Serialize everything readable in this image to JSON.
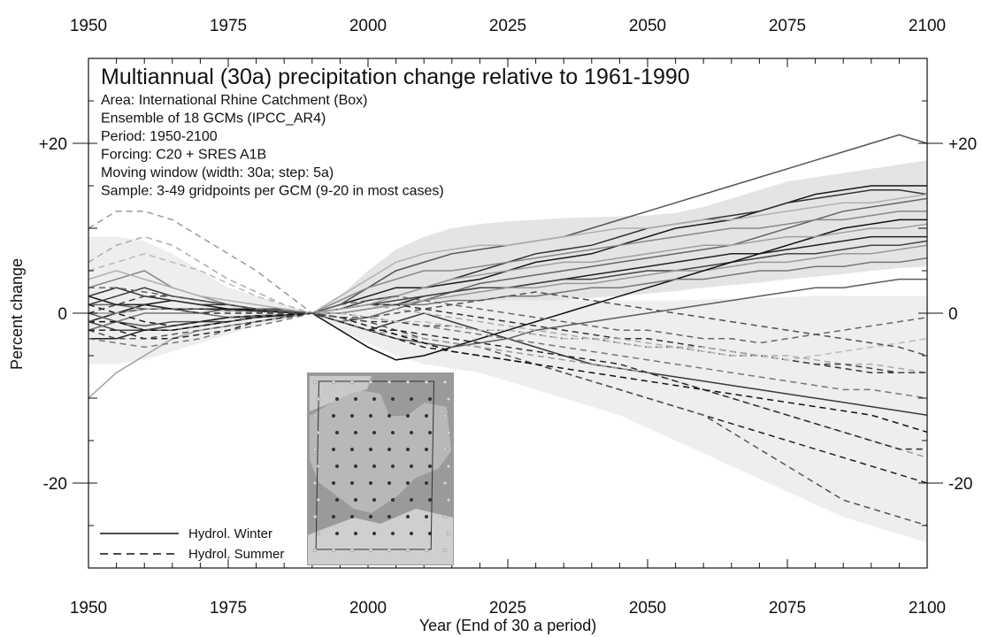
{
  "chart_data": {
    "type": "line",
    "title": "Multiannual (30a) precipitation change relative to 1961-1990",
    "info_lines": [
      "Area: International Rhine Catchment (Box)",
      "Ensemble of 18 GCMs (IPCC_AR4)",
      "Period: 1950-2100",
      "Forcing: C20 + SRES A1B",
      "Moving window (width: 30a; step: 5a)",
      "Sample: 3-49 gridpoints per GCM (9-20 in most cases)"
    ],
    "xlabel": "Year (End of 30 a period)",
    "ylabel": "Percent change",
    "xlim": [
      1950,
      2100
    ],
    "ylim": [
      -30,
      30
    ],
    "x_ticks": [
      "1950",
      "1975",
      "2000",
      "2025",
      "2050",
      "2075",
      "2100"
    ],
    "y_ticks": [
      "+20",
      "0",
      "-20"
    ],
    "y_tick_values": [
      20,
      0,
      -20
    ],
    "legend_position": "bottom-left",
    "legend": [
      {
        "label": "Hydrol. Winter",
        "style": "solid"
      },
      {
        "label": "Hydrol. Summer",
        "style": "dashed"
      }
    ],
    "x": [
      1950,
      1955,
      1960,
      1965,
      1970,
      1975,
      1980,
      1985,
      1990,
      1995,
      2000,
      2005,
      2010,
      2015,
      2020,
      2025,
      2030,
      2035,
      2040,
      2045,
      2050,
      2055,
      2060,
      2065,
      2070,
      2075,
      2080,
      2085,
      2090,
      2095,
      2100
    ],
    "bands": [
      {
        "name": "winter_range",
        "color": "#e4e4e4",
        "upper": [
          7,
          7,
          6,
          4.5,
          3,
          2,
          1.5,
          0.8,
          0,
          2,
          5,
          7.5,
          9,
          10,
          10.5,
          10.8,
          11,
          11.2,
          11.3,
          11.4,
          11.5,
          11.8,
          12.5,
          13.5,
          14.5,
          15.5,
          16,
          16.5,
          17,
          17.5,
          18
        ],
        "lower": [
          -4,
          -4,
          -3.5,
          -3,
          -2,
          -1.5,
          -1,
          -0.5,
          0,
          -1,
          -1,
          -0.5,
          0,
          0.3,
          0.5,
          1,
          1.2,
          1.5,
          1.8,
          2,
          2.3,
          2.6,
          3,
          3.3,
          3.6,
          4,
          4.3,
          4.6,
          5,
          5.3,
          5.5
        ]
      },
      {
        "name": "summer_range",
        "color": "#eeeeee",
        "upper": [
          9,
          9,
          8.5,
          7,
          5,
          3,
          2,
          1,
          0,
          1,
          1.5,
          1.5,
          1.5,
          1.5,
          1.5,
          1.5,
          1.5,
          1.5,
          1.5,
          1.5,
          1.5,
          1.5,
          1.6,
          1.7,
          1.8,
          1.9,
          2,
          2,
          2,
          2,
          2
        ],
        "lower": [
          -6,
          -6,
          -5.5,
          -4.5,
          -3.5,
          -2.5,
          -1.5,
          -0.8,
          0,
          -2,
          -3.5,
          -5,
          -6,
          -6.5,
          -7,
          -8,
          -9,
          -10,
          -11,
          -12,
          -13.5,
          -15,
          -16.5,
          -18,
          -19.5,
          -21,
          -22.5,
          -24,
          -25,
          -26,
          -27
        ]
      }
    ],
    "series": [
      {
        "style": "solid",
        "color": "#1a1a1a",
        "values": [
          -1,
          0,
          1,
          1.5,
          1,
          0.5,
          0.5,
          0.3,
          0,
          1,
          2,
          3,
          3,
          3.5,
          4,
          5,
          6,
          6.5,
          7,
          8,
          9,
          10,
          10.5,
          11,
          12,
          13,
          14,
          14.5,
          15,
          15,
          15
        ]
      },
      {
        "style": "solid",
        "color": "#333333",
        "values": [
          2,
          3,
          2,
          1.5,
          1,
          1,
          0.5,
          0.5,
          0,
          0.5,
          1.5,
          2,
          3,
          4,
          5,
          6,
          7,
          7.5,
          8,
          9,
          10,
          10.5,
          11,
          11.5,
          12,
          13,
          13.5,
          14,
          14.5,
          14.5,
          14
        ]
      },
      {
        "style": "solid",
        "color": "#555555",
        "values": [
          -2,
          -1,
          -1.5,
          -1,
          -1,
          -0.5,
          -0.5,
          -0.3,
          0,
          1,
          3,
          5,
          6,
          7,
          7.5,
          8,
          8.5,
          9,
          10,
          11,
          12,
          13,
          14,
          15,
          16,
          17,
          18,
          19,
          20,
          21,
          20
        ]
      },
      {
        "style": "solid",
        "color": "#666666",
        "values": [
          1,
          1,
          0.5,
          0.5,
          0,
          0.5,
          0.3,
          0.2,
          0,
          -1,
          -0.5,
          0.5,
          1.5,
          2.5,
          3.5,
          4,
          4.5,
          5,
          5.5,
          6,
          6.5,
          7,
          7.5,
          8,
          9,
          10,
          11,
          12,
          12.5,
          13,
          13.5
        ]
      },
      {
        "style": "solid",
        "color": "#222222",
        "values": [
          -3,
          -3,
          -2,
          -1.5,
          -1,
          -0.5,
          -0.3,
          -0.2,
          0,
          0,
          0.5,
          1,
          2,
          2.5,
          3,
          3,
          3.5,
          4,
          4.5,
          5,
          5.5,
          6,
          6.5,
          7,
          7,
          7.5,
          8,
          8.5,
          9,
          9,
          9
        ]
      },
      {
        "style": "solid",
        "color": "#888888",
        "values": [
          3,
          4,
          5,
          3,
          2,
          1,
          0.5,
          0.3,
          0,
          1.5,
          3,
          4,
          5,
          5,
          5.5,
          6,
          6.5,
          7,
          7.5,
          8,
          8.5,
          9,
          9.5,
          10,
          10,
          10.5,
          11,
          11,
          11.5,
          12,
          12
        ]
      },
      {
        "style": "solid",
        "color": "#444444",
        "values": [
          -1,
          -2,
          -2,
          -1.5,
          -1,
          -1,
          -0.5,
          -0.3,
          0,
          0.5,
          1,
          1.5,
          2,
          2.5,
          3,
          3,
          3.5,
          4,
          4,
          4.5,
          5,
          5,
          5.5,
          6,
          6.5,
          7,
          7,
          7.5,
          8,
          8,
          8.5
        ]
      },
      {
        "style": "solid",
        "color": "#999999",
        "values": [
          0,
          0,
          0.5,
          0.5,
          0.5,
          0.3,
          0.2,
          0.1,
          0,
          0,
          0.5,
          1,
          1.5,
          2,
          2.5,
          3,
          3,
          3.5,
          3.5,
          4,
          4.5,
          5,
          5,
          5.5,
          6,
          6,
          6.5,
          7,
          7,
          7.5,
          8
        ]
      },
      {
        "style": "solid",
        "color": "#111111",
        "values": [
          2,
          1,
          1,
          0.5,
          0.5,
          0.5,
          0.3,
          0.1,
          0,
          -2,
          -4,
          -5.5,
          -5,
          -4,
          -3,
          -2,
          -1,
          0,
          1,
          2,
          3,
          4,
          5,
          6,
          7,
          8,
          9,
          10,
          10.5,
          11,
          11
        ]
      },
      {
        "style": "solid",
        "color": "#777777",
        "values": [
          -2,
          -1,
          0,
          0,
          0,
          -0.5,
          -0.3,
          -0.2,
          0,
          0.5,
          1,
          1,
          1,
          1.5,
          1.5,
          2,
          2,
          2.5,
          3,
          3,
          3.5,
          4,
          4,
          4.5,
          5,
          5,
          5.5,
          5.5,
          6,
          6,
          6.5
        ]
      },
      {
        "style": "solid",
        "color": "#a0a0a0",
        "values": [
          -10,
          -7,
          -5,
          -3,
          -2,
          -1.5,
          -1,
          -0.5,
          0,
          0.5,
          1,
          2,
          3,
          4,
          4.5,
          5,
          5.5,
          6,
          6,
          6.5,
          7,
          7.5,
          8,
          8,
          8.5,
          9,
          9,
          9.5,
          10,
          10,
          10.5
        ]
      },
      {
        "style": "solid",
        "color": "#3a3a3a",
        "values": [
          1,
          2,
          3,
          2,
          1.5,
          1,
          0.5,
          0.2,
          0,
          -1,
          -2,
          -1,
          0,
          -1,
          -2,
          -3,
          -4,
          -5,
          -6,
          -6.5,
          -7,
          -7.5,
          -8,
          -8.5,
          -9,
          -9.5,
          -10,
          -10.5,
          -11,
          -11.5,
          -12
        ]
      },
      {
        "style": "solid",
        "color": "#5e5e5e",
        "values": [
          0,
          -1,
          -2,
          -2,
          -1.5,
          -1,
          -0.5,
          -0.2,
          0,
          -1,
          -2,
          -3,
          -3.5,
          -4,
          -3.5,
          -3,
          -2,
          -1.5,
          -1,
          -0.5,
          0,
          0.5,
          1,
          1.5,
          2,
          2.5,
          3,
          3,
          3.5,
          4,
          4
        ]
      },
      {
        "style": "solid",
        "color": "#b0b0b0",
        "values": [
          4,
          5,
          4,
          3,
          2,
          1.5,
          1,
          0.5,
          0,
          2,
          4,
          6,
          7,
          7.5,
          8,
          8,
          8.5,
          9,
          9.5,
          10,
          10,
          10.5,
          11,
          11,
          11.5,
          12,
          12.5,
          13,
          13,
          13.5,
          14
        ]
      },
      {
        "style": "dashed",
        "color": "#222222",
        "values": [
          1,
          0,
          -1,
          -1.5,
          -1,
          -0.5,
          -0.3,
          -0.2,
          0,
          -1,
          -2,
          -3,
          -4,
          -4.5,
          -5,
          -5.5,
          -6,
          -7,
          -8,
          -9,
          -10,
          -11,
          -12,
          -13,
          -14,
          -15,
          -16,
          -17,
          -18,
          -19,
          -20
        ]
      },
      {
        "style": "dashed",
        "color": "#555555",
        "values": [
          -2,
          -3,
          -3,
          -2.5,
          -2,
          -1.5,
          -1,
          -0.5,
          0,
          -0.5,
          -1,
          -2,
          -3,
          -3.5,
          -4,
          -5,
          -6,
          -7,
          -8,
          -9,
          -10,
          -11,
          -12,
          -14,
          -16,
          -18,
          -20,
          -22,
          -23,
          -24,
          -25
        ]
      },
      {
        "style": "dashed",
        "color": "#999999",
        "values": [
          10,
          12,
          12,
          11,
          9,
          7,
          5,
          2.5,
          0,
          -1,
          -2,
          -2.5,
          -3,
          -3.5,
          -4,
          -4.5,
          -5,
          -5.5,
          -6,
          -6.5,
          -7,
          -8,
          -9,
          -10,
          -11,
          -12,
          -13,
          -14,
          -15,
          -16,
          -17
        ]
      },
      {
        "style": "dashed",
        "color": "#333333",
        "values": [
          2,
          1,
          1,
          0.5,
          0,
          0,
          0,
          0,
          0,
          0.5,
          1,
          1,
          0.5,
          0,
          -0.5,
          -1,
          -1.5,
          -2,
          -2.5,
          -3,
          -3,
          -3.5,
          -4,
          -4.5,
          -5,
          -5.5,
          -6,
          -6.5,
          -7,
          -7,
          -7
        ]
      },
      {
        "style": "dashed",
        "color": "#777777",
        "values": [
          -3,
          -3.5,
          -4,
          -3.5,
          -3,
          -2,
          -1.5,
          -0.8,
          0,
          0,
          -0.5,
          -1,
          -1.5,
          -2,
          -2.5,
          -3,
          -3.5,
          -4,
          -4.5,
          -5,
          -5.5,
          -6,
          -6.5,
          -7,
          -7.5,
          -8,
          -8.5,
          -9,
          -9,
          -9.5,
          -10
        ]
      },
      {
        "style": "dashed",
        "color": "#111111",
        "values": [
          -1,
          -1,
          -2,
          -2,
          -1.5,
          -1,
          -0.5,
          -0.2,
          0,
          -0.5,
          -1.5,
          -2.5,
          -3.5,
          -4.5,
          -5,
          -5.5,
          -6,
          -6.5,
          -7,
          -7.5,
          -8,
          -8.5,
          -9,
          -9.5,
          -10,
          -10.5,
          -11,
          -11.5,
          -12,
          -13,
          -14
        ]
      },
      {
        "style": "dashed",
        "color": "#aaaaaa",
        "values": [
          6,
          8,
          9,
          8,
          6,
          4,
          2.5,
          1,
          0,
          0.5,
          1,
          0.5,
          0,
          -0.5,
          -1,
          -1.5,
          -2,
          -2.5,
          -3,
          -3,
          -3.5,
          -4,
          -4,
          -4.5,
          -5,
          -5,
          -5.5,
          -6,
          -6,
          -6.5,
          -7
        ]
      },
      {
        "style": "dashed",
        "color": "#444444",
        "values": [
          0,
          1,
          2,
          2,
          1.5,
          1,
          0.5,
          0.2,
          0,
          -0.5,
          -1,
          -1,
          -1.5,
          -1.5,
          -2,
          -2,
          -2.5,
          -3,
          -3,
          -3.5,
          -4,
          -4,
          -4.5,
          -5,
          -5,
          -5.5,
          -6,
          -6,
          -6.5,
          -7,
          -7
        ]
      },
      {
        "style": "dashed",
        "color": "#666666",
        "values": [
          3,
          3,
          2.5,
          2,
          1.5,
          1,
          0.5,
          0.3,
          0,
          1,
          1.5,
          2,
          1.5,
          1,
          0.5,
          0,
          -0.5,
          -1,
          -1.5,
          -2,
          -2,
          -2.5,
          -3,
          -3,
          -3.5,
          -3,
          -2.5,
          -2,
          -1.5,
          -1,
          -0.5
        ]
      },
      {
        "style": "dashed",
        "color": "#2a2a2a",
        "values": [
          -2,
          -2,
          -3,
          -3,
          -2.5,
          -2,
          -1,
          -0.5,
          0,
          -1,
          -2,
          -2,
          -2.5,
          -3,
          -3.5,
          -4,
          -4.5,
          -5,
          -5.5,
          -6,
          -7,
          -8,
          -9,
          -10,
          -11,
          -12,
          -13,
          -14,
          -15,
          -16,
          -16
        ]
      },
      {
        "style": "dashed",
        "color": "#bbbbbb",
        "values": [
          5,
          6,
          7,
          6,
          5,
          3.5,
          2,
          1,
          0,
          0,
          -0.5,
          -1,
          -1,
          -1.5,
          -2,
          -2,
          -2.5,
          -3,
          -3,
          -3.5,
          -4,
          -4,
          -4.5,
          -5,
          -5,
          -5.5,
          -5,
          -4.5,
          -4,
          -3.5,
          -3
        ]
      },
      {
        "style": "dashed",
        "color": "#505050",
        "values": [
          -1,
          0,
          0.5,
          0.5,
          0.5,
          0.3,
          0.2,
          0.1,
          0,
          -0.5,
          -0.5,
          0,
          0.5,
          1,
          1.5,
          2,
          2.5,
          2,
          1.5,
          1,
          0.5,
          0,
          -0.5,
          -1,
          -1.5,
          -2,
          -2.5,
          -3,
          -3.5,
          -4,
          -5
        ]
      }
    ]
  },
  "inset": {
    "name": "rhine-catchment-map",
    "background": "#9a9a9a"
  }
}
